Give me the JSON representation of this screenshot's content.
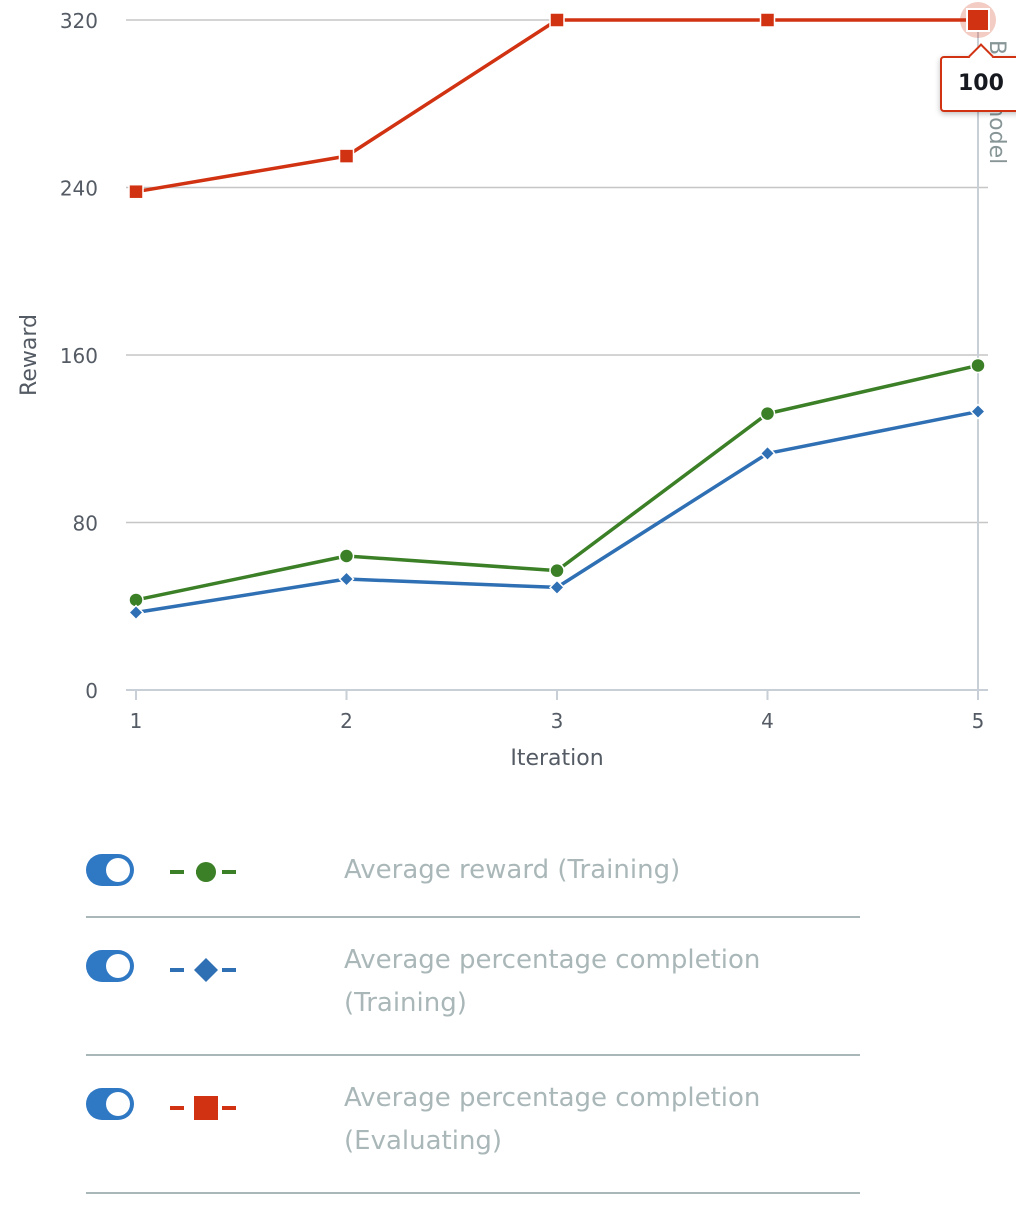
{
  "chart_data": {
    "type": "line",
    "xlabel": "Iteration",
    "ylabel": "Reward",
    "x": [
      1,
      2,
      3,
      4,
      5
    ],
    "ylim": [
      0,
      320
    ],
    "yticks": [
      0,
      80,
      160,
      240,
      320
    ],
    "grid": true,
    "series": [
      {
        "name": "Average reward (Training)",
        "color": "#3b7f26",
        "marker": "circle",
        "values": [
          43,
          64,
          57,
          132,
          155
        ]
      },
      {
        "name": "Average percentage completion (Training)",
        "color": "#2f6fb3",
        "marker": "diamond",
        "values": [
          37,
          53,
          49,
          113,
          133
        ]
      },
      {
        "name": "Average percentage completion (Evaluating)",
        "color": "#d13212",
        "marker": "square",
        "values": [
          238,
          255,
          320,
          320,
          320
        ]
      }
    ],
    "marker_line_label": "Best model",
    "tooltip": {
      "x": 5,
      "series": "Average percentage completion (Evaluating)",
      "text": "100"
    }
  },
  "legend": {
    "items": [
      {
        "label": "Average reward (Training)",
        "enabled": true,
        "icon": "line-circle-icon"
      },
      {
        "label": "Average percentage completion (Training)",
        "enabled": true,
        "icon": "line-diamond-icon"
      },
      {
        "label": "Average percentage completion (Evaluating)",
        "enabled": true,
        "icon": "line-square-icon"
      }
    ]
  }
}
